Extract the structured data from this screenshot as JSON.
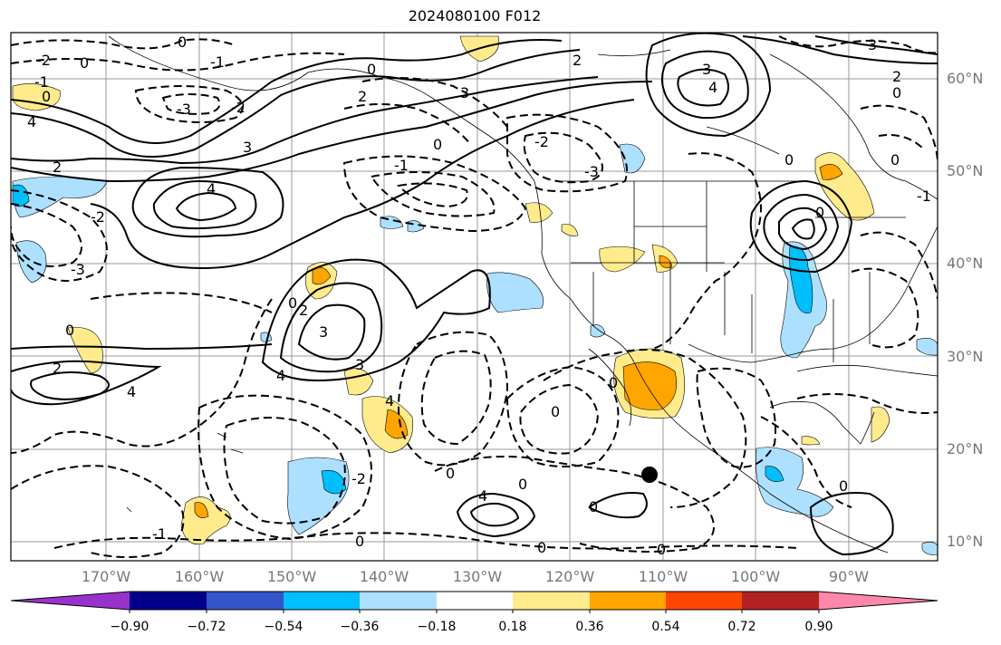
{
  "title": "2024080100 F012",
  "lat_labels": [
    "60°N",
    "50°N",
    "40°N",
    "30°N",
    "20°N",
    "10°N"
  ],
  "lon_labels": [
    "170°W",
    "160°W",
    "150°W",
    "140°W",
    "130°W",
    "120°W",
    "110°W",
    "100°W",
    "90°W"
  ],
  "colorbar": {
    "labels": [
      "−0.90",
      "−0.72",
      "−0.54",
      "−0.36",
      "−0.18",
      "0.18",
      "0.36",
      "0.54",
      "0.72",
      "0.90"
    ],
    "colors": [
      "#9932CC",
      "#00008B",
      "#3355CC",
      "#00BFFF",
      "#ADE0FF",
      "#FFFFFF",
      "#FFEB8C",
      "#FFA500",
      "#FF4500",
      "#B22222",
      "#FF88AA"
    ]
  },
  "contour_labels": [
    "0",
    "1",
    "2",
    "3",
    "4",
    "-1",
    "-2",
    "-3"
  ],
  "colors": {
    "warm_fill": "#FFEB8C",
    "orange_fill": "#FFA500",
    "cool_fill": "#ADE0FF",
    "blue_fill": "#00BFFF"
  }
}
